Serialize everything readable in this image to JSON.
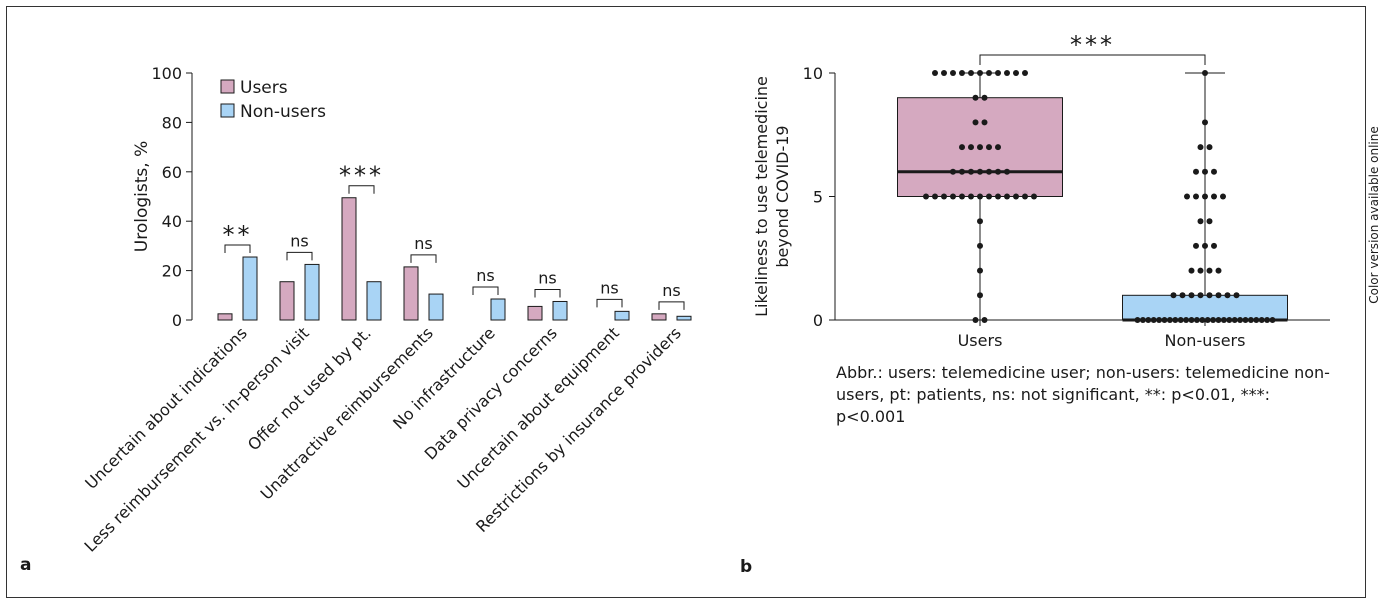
{
  "side_note": "Color version available online",
  "colors": {
    "users": "#d5a9c0",
    "non_users": "#a9d4f5",
    "stroke": "#1a1a1a"
  },
  "panel_a": {
    "letter": "a",
    "chart_data": {
      "type": "bar",
      "ylabel": "Urologists, %",
      "ylim": [
        0,
        100
      ],
      "yticks": [
        0,
        20,
        40,
        60,
        80,
        100
      ],
      "categories": [
        "Uncertain about indications",
        "Less reimbursement vs. in-person visit",
        "Offer not used by pt.",
        "Unattractive reimbursements",
        "No infrastructure",
        "Data privacy concerns",
        "Uncertain about equipment",
        "Restrictions by insurance providers"
      ],
      "series": [
        {
          "name": "Users",
          "values": [
            2.5,
            15.5,
            49.5,
            21.5,
            0,
            5.5,
            0,
            2.5
          ]
        },
        {
          "name": "Non-users",
          "values": [
            25.5,
            22.5,
            15.5,
            10.5,
            8.5,
            7.5,
            3.5,
            1.5
          ]
        }
      ],
      "significance": [
        "**",
        "ns",
        "***",
        "ns",
        "ns",
        "ns",
        "ns",
        "ns"
      ],
      "legend_position": "top-left"
    }
  },
  "panel_b": {
    "letter": "b",
    "chart_data": {
      "type": "box",
      "ylabel_line1": "Likeliness to use telemedicine",
      "ylabel_line2": "beyond COVID-19",
      "ylim": [
        0,
        10
      ],
      "yticks": [
        0,
        5,
        10
      ],
      "categories": [
        "Users",
        "Non-users"
      ],
      "boxes": [
        {
          "name": "Users",
          "min": 0,
          "q1": 5,
          "median": 6,
          "q3": 9,
          "max": 10
        },
        {
          "name": "Non-users",
          "min": 0,
          "q1": 0,
          "median": 0,
          "q3": 1,
          "max": 10
        }
      ],
      "points": [
        [
          10,
          10,
          10,
          10,
          10,
          10,
          10,
          10,
          10,
          10,
          10,
          9,
          9,
          8,
          8,
          7,
          7,
          7,
          7,
          7,
          6,
          6,
          6,
          6,
          6,
          6,
          6,
          5,
          5,
          5,
          5,
          5,
          5,
          5,
          5,
          5,
          5,
          5,
          5,
          5,
          4,
          3,
          2,
          1,
          0,
          0
        ],
        [
          10,
          8,
          7,
          7,
          6,
          6,
          6,
          5,
          5,
          5,
          5,
          5,
          4,
          4,
          3,
          3,
          3,
          2,
          2,
          2,
          2,
          1,
          1,
          1,
          1,
          1,
          1,
          1,
          1,
          0,
          0,
          0,
          0,
          0,
          0,
          0,
          0,
          0,
          0,
          0,
          0,
          0,
          0,
          0,
          0,
          0,
          0,
          0,
          0,
          0,
          0,
          0,
          0,
          0,
          0
        ]
      ],
      "significance": "***"
    },
    "abbreviation": "Abbr.: users: telemedicine user; non-users: telemedicine non-users, pt: patients, ns: not significant, **: p<0.01, ***: p<0.001"
  }
}
